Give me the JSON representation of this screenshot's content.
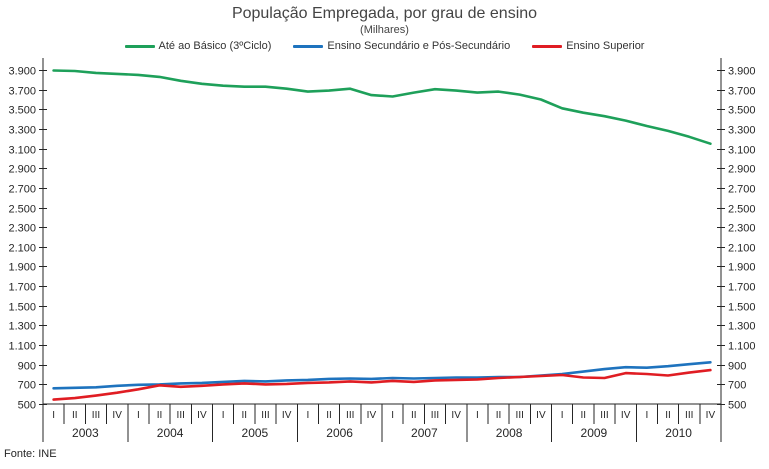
{
  "title": "População Empregada, por grau de ensino",
  "subtitle": "(Milhares)",
  "source_note": "Fonte: INE",
  "chart_data": {
    "type": "line",
    "title": "População Empregada, por grau de ensino",
    "subtitle": "(Milhares)",
    "grid": false,
    "legend_position": "top",
    "years": [
      "2003",
      "2004",
      "2005",
      "2006",
      "2007",
      "2008",
      "2009",
      "2010"
    ],
    "quarter_labels": [
      "I",
      "II",
      "III",
      "IV"
    ],
    "y_axis": {
      "min": 500,
      "max": 3900,
      "step": 200,
      "tick_labels": [
        "500",
        "700",
        "900",
        "1.100",
        "1.300",
        "1.500",
        "1.700",
        "1.900",
        "2.100",
        "2.300",
        "2.500",
        "2.700",
        "2.900",
        "3.100",
        "3.300",
        "3.500",
        "3.700",
        "3.900"
      ]
    },
    "series": [
      {
        "id": "basico",
        "label": "Até ao Básico (3ºCiclo)",
        "color": "#1ea05a",
        "values": [
          3895,
          3890,
          3870,
          3860,
          3850,
          3830,
          3790,
          3760,
          3740,
          3730,
          3730,
          3710,
          3680,
          3690,
          3710,
          3645,
          3630,
          3670,
          3705,
          3690,
          3670,
          3680,
          3650,
          3600,
          3510,
          3465,
          3430,
          3385,
          3330,
          3280,
          3220,
          3150
        ]
      },
      {
        "id": "secundario",
        "label": "Ensino Secundário e Pós-Secundário",
        "color": "#1e73be",
        "values": [
          660,
          665,
          670,
          685,
          695,
          700,
          710,
          715,
          725,
          735,
          730,
          740,
          745,
          755,
          760,
          755,
          765,
          760,
          765,
          770,
          770,
          775,
          775,
          790,
          805,
          830,
          855,
          875,
          870,
          885,
          905,
          925
        ]
      },
      {
        "id": "superior",
        "label": "Ensino Superior",
        "color": "#e01d23",
        "values": [
          545,
          560,
          585,
          615,
          650,
          690,
          675,
          685,
          700,
          710,
          700,
          705,
          715,
          720,
          730,
          720,
          735,
          725,
          740,
          745,
          750,
          765,
          775,
          785,
          795,
          770,
          765,
          815,
          805,
          790,
          820,
          845
        ]
      }
    ]
  }
}
